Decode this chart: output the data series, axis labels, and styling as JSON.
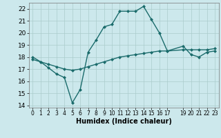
{
  "xlabel": "Humidex (Indice chaleur)",
  "background_color": "#cce8ec",
  "grid_color": "#aacccc",
  "line_color": "#1a6b6b",
  "line1_x": [
    0,
    1,
    2,
    3,
    4,
    5,
    6,
    7,
    8,
    9,
    10,
    11,
    12,
    13,
    14,
    15,
    16,
    17,
    19,
    20,
    21,
    22,
    23
  ],
  "line1_y": [
    18.0,
    17.6,
    17.1,
    16.6,
    16.3,
    14.2,
    15.3,
    18.4,
    19.4,
    20.5,
    20.7,
    21.8,
    21.8,
    21.8,
    22.2,
    21.1,
    20.0,
    18.5,
    18.9,
    18.2,
    18.0,
    18.4,
    18.5
  ],
  "line2_x": [
    0,
    1,
    2,
    3,
    4,
    5,
    6,
    7,
    8,
    9,
    10,
    11,
    12,
    13,
    14,
    15,
    16,
    17,
    19,
    20,
    21,
    22,
    23
  ],
  "line2_y": [
    17.8,
    17.6,
    17.4,
    17.2,
    17.0,
    16.9,
    17.0,
    17.2,
    17.4,
    17.6,
    17.8,
    18.0,
    18.1,
    18.2,
    18.3,
    18.4,
    18.5,
    18.5,
    18.6,
    18.6,
    18.6,
    18.6,
    18.7
  ],
  "ylim": [
    13.8,
    22.5
  ],
  "xlim": [
    -0.5,
    23.5
  ],
  "yticks": [
    14,
    15,
    16,
    17,
    18,
    19,
    20,
    21,
    22
  ],
  "xticks": [
    0,
    1,
    2,
    3,
    4,
    5,
    6,
    7,
    8,
    9,
    10,
    11,
    12,
    13,
    14,
    15,
    16,
    17,
    19,
    20,
    21,
    22,
    23
  ],
  "xtick_labels": [
    "0",
    "1",
    "2",
    "3",
    "4",
    "5",
    "6",
    "7",
    "8",
    "9",
    "10",
    "11",
    "12",
    "13",
    "14",
    "15",
    "16",
    "17",
    "19",
    "20",
    "21",
    "22",
    "23"
  ],
  "ytick_fontsize": 6.5,
  "xtick_fontsize": 5.5,
  "xlabel_fontsize": 7
}
